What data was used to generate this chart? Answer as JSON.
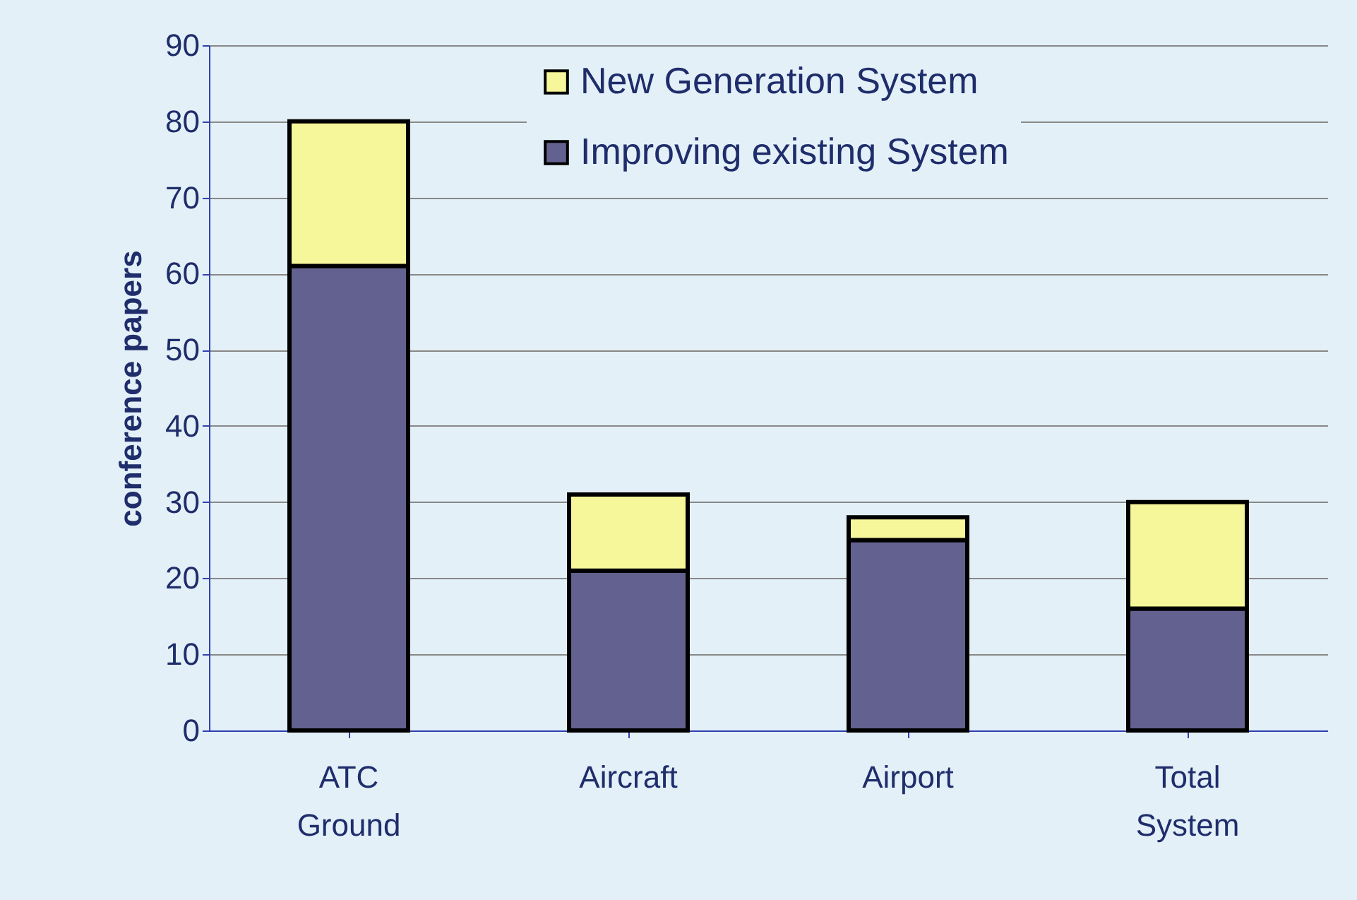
{
  "chart_data": {
    "type": "bar",
    "ylabel": "conference papers",
    "categories": [
      "ATC Ground",
      "Aircraft",
      "Airport",
      "Total System"
    ],
    "stacked": true,
    "series": [
      {
        "name": "Improving existing System",
        "color": "#62618f",
        "values": [
          61,
          21,
          25,
          16
        ]
      },
      {
        "name": "New Generation System",
        "color": "#f6f69a",
        "values": [
          19,
          10,
          3,
          14
        ]
      }
    ],
    "ylim": [
      0,
      90
    ],
    "yticks": [
      0,
      10,
      20,
      30,
      40,
      50,
      60,
      70,
      80,
      90
    ],
    "grid": "y",
    "legend": "top right"
  }
}
